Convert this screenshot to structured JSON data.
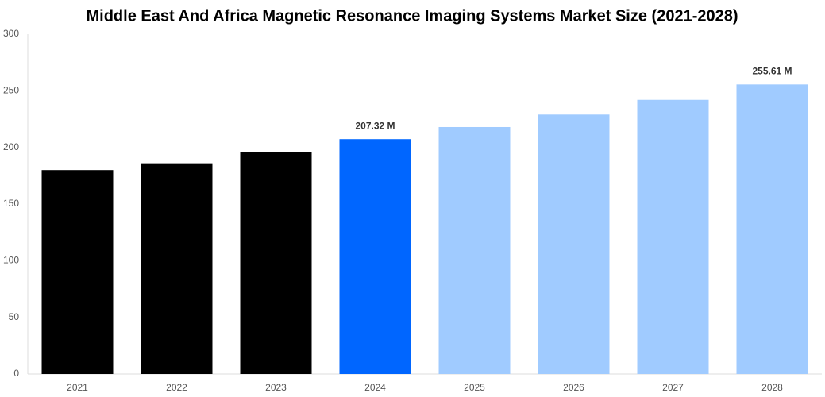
{
  "chart_data": {
    "type": "bar",
    "title": "Middle East And Africa Magnetic Resonance Imaging Systems Market Size (2021-2028)",
    "categories": [
      "2021",
      "2022",
      "2023",
      "2024",
      "2025",
      "2026",
      "2027",
      "2028"
    ],
    "values": [
      180,
      186,
      196,
      207.32,
      218,
      229,
      242,
      255.61
    ],
    "value_labels": [
      null,
      null,
      null,
      "207.32 M",
      null,
      null,
      null,
      "255.61 M"
    ],
    "colors": [
      "#000000",
      "#000000",
      "#000000",
      "#0066ff",
      "#a0cbff",
      "#a0cbff",
      "#a0cbff",
      "#a0cbff"
    ],
    "ylim": [
      0,
      300
    ],
    "yticks": [
      0,
      50,
      100,
      150,
      200,
      250,
      300
    ],
    "grid": false
  }
}
